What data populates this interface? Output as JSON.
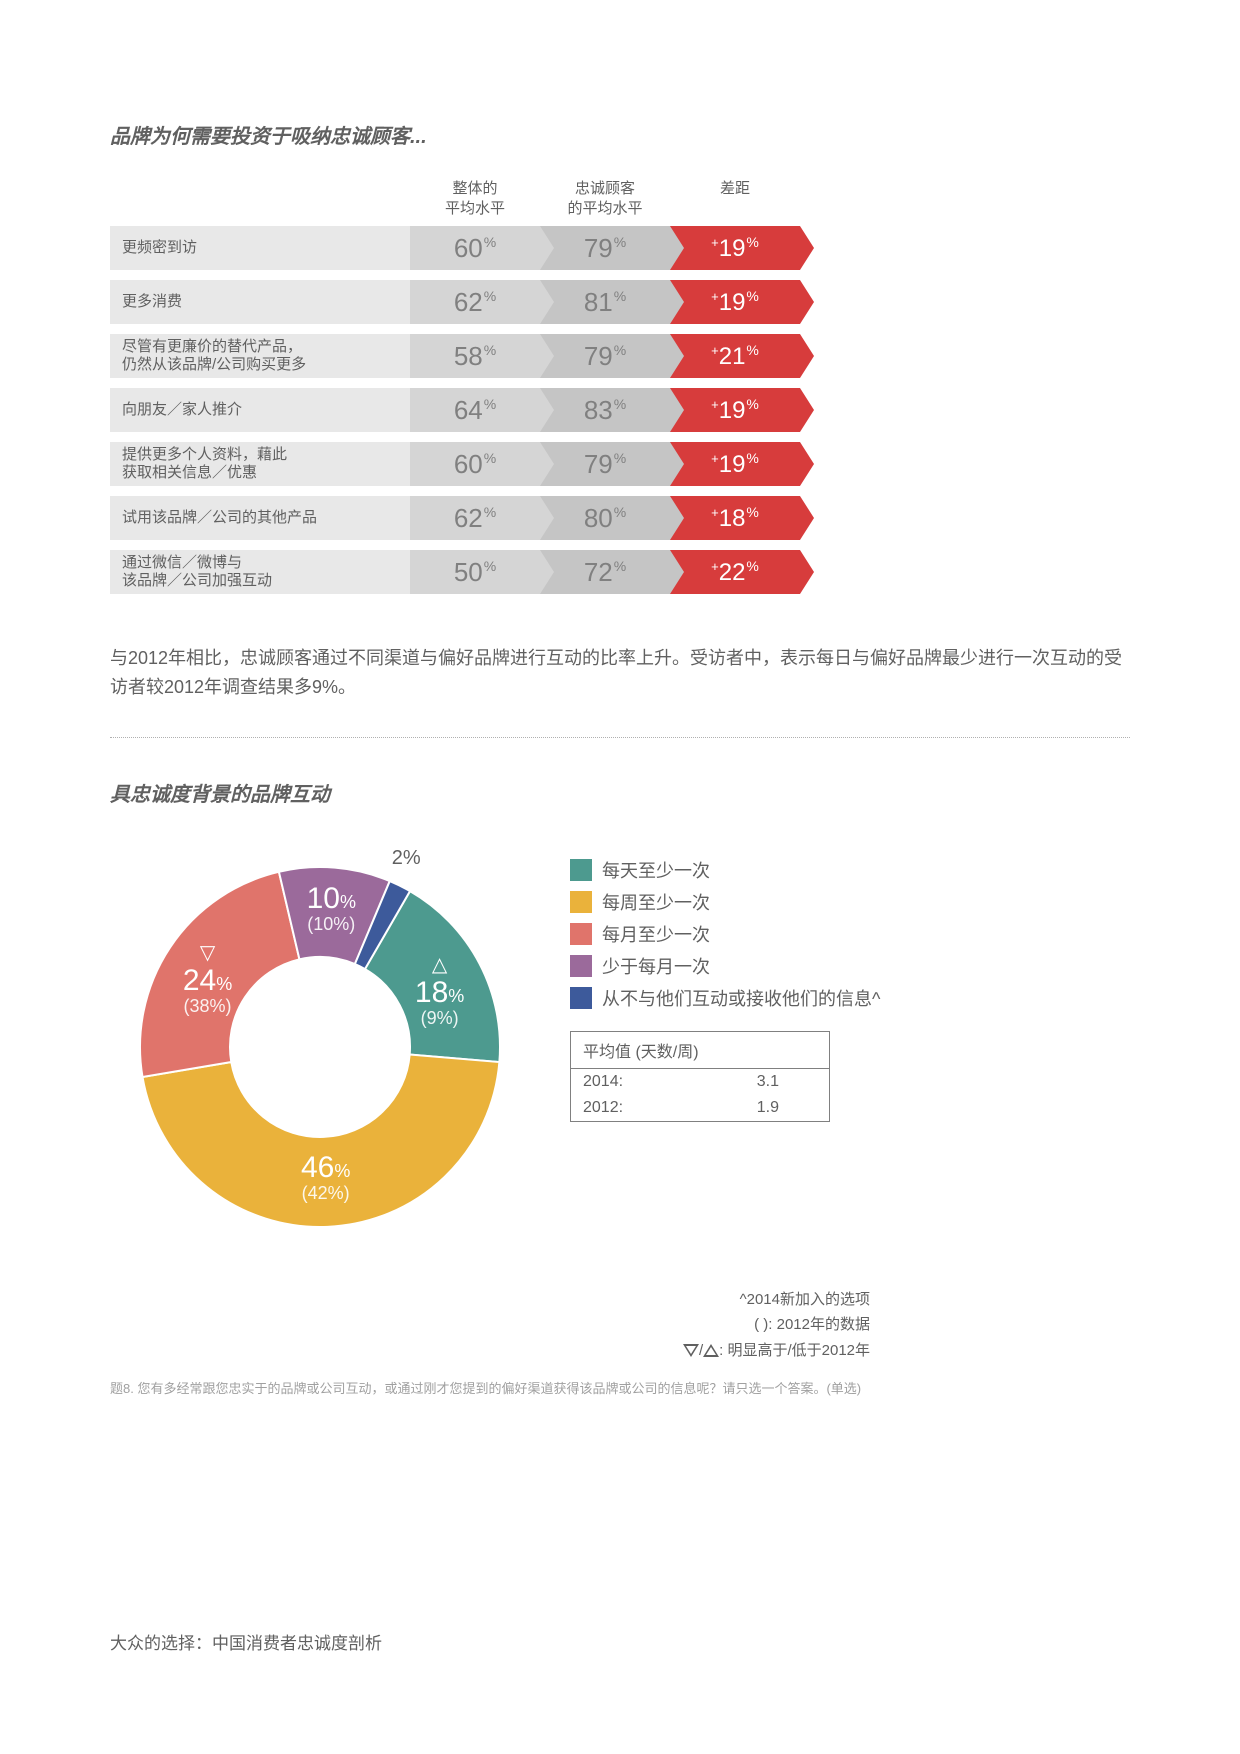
{
  "title1": "品牌为何需要投资于吸纳忠诚顾客...",
  "headers": {
    "col1": "整体的\n平均水平",
    "col2": "忠诚顾客\n的平均水平",
    "col3": "差距"
  },
  "rows": [
    {
      "label": "更频密到访",
      "a": "60",
      "b": "79",
      "d": "19"
    },
    {
      "label": "更多消费",
      "a": "62",
      "b": "81",
      "d": "19"
    },
    {
      "label": "尽管有更廉价的替代产品，\n仍然从该品牌/公司购买更多",
      "a": "58",
      "b": "79",
      "d": "21"
    },
    {
      "label": "向朋友／家人推介",
      "a": "64",
      "b": "83",
      "d": "19"
    },
    {
      "label": "提供更多个人资料，藉此\n获取相关信息／优惠",
      "a": "60",
      "b": "79",
      "d": "19"
    },
    {
      "label": "试用该品牌／公司的其他产品",
      "a": "62",
      "b": "80",
      "d": "18"
    },
    {
      "label": "通过微信／微博与\n该品牌／公司加强互动",
      "a": "50",
      "b": "72",
      "d": "22"
    }
  ],
  "paragraph": "与2012年相比，忠诚顾客通过不同渠道与偏好品牌进行互动的比率上升。受访者中，表示每日与偏好品牌最少进行一次互动的受访者较2012年调查结果多9%。",
  "title2": "具忠诚度背景的品牌互动",
  "donut": {
    "slices": [
      {
        "value": 18,
        "paren": "9",
        "color": "#4d9a8f",
        "tri": "up"
      },
      {
        "value": 46,
        "paren": "42",
        "color": "#eab23b",
        "tri": null
      },
      {
        "value": 24,
        "paren": "38",
        "color": "#e0746b",
        "tri": "down"
      },
      {
        "value": 10,
        "paren": "10",
        "color": "#9b6a9b",
        "tri": null
      },
      {
        "value": 2,
        "paren": null,
        "color": "#3d5a9b",
        "tri": null
      }
    ],
    "inner_radius": 90,
    "outer_radius": 180,
    "start_angle": -60,
    "label_2pct": "2%"
  },
  "legend": [
    {
      "color": "#4d9a8f",
      "text": "每天至少一次"
    },
    {
      "color": "#eab23b",
      "text": "每周至少一次"
    },
    {
      "color": "#e0746b",
      "text": "每月至少一次"
    },
    {
      "color": "#9b6a9b",
      "text": "少于每月一次"
    },
    {
      "color": "#3d5a9b",
      "text": "从不与他们互动或接收他们的信息^"
    }
  ],
  "avg": {
    "head": "平均值 (天数/周)",
    "rows": [
      {
        "year": "2014:",
        "val": "3.1"
      },
      {
        "year": "2012:",
        "val": "1.9"
      }
    ]
  },
  "notes": {
    "n1": "^2014新加入的选项",
    "n2": "( ): 2012年的数据",
    "n3": "▽/△: 明显高于/低于2012年"
  },
  "question": "题8. 您有多经常跟您忠实于的品牌或公司互动，或通过刚才您提到的偏好渠道获得该品牌或公司的信息呢？请只选一个答案。(单选)",
  "footer": "大众的选择：中国消费者忠诚度剖析"
}
